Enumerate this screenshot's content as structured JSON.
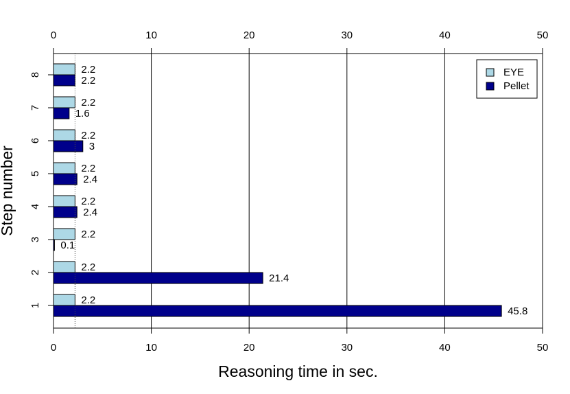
{
  "chart_data": {
    "type": "bar",
    "orientation": "horizontal",
    "xlabel": "Reasoning time in sec.",
    "ylabel": "Step number",
    "xlim": [
      0,
      50
    ],
    "x_ticks": [
      "0",
      "10",
      "20",
      "30",
      "40",
      "50"
    ],
    "categories": [
      "1",
      "2",
      "3",
      "4",
      "5",
      "6",
      "7",
      "8"
    ],
    "series": [
      {
        "name": "EYE",
        "color": "#add8e6",
        "values": [
          2.2,
          2.2,
          2.2,
          2.2,
          2.2,
          2.2,
          2.2,
          2.2
        ],
        "labels": [
          "2.2",
          "2.2",
          "2.2",
          "2.2",
          "2.2",
          "2.2",
          "2.2",
          "2.2"
        ]
      },
      {
        "name": "Pellet",
        "color": "#00008b",
        "values": [
          45.8,
          21.4,
          0.1,
          2.4,
          2.4,
          3,
          1.6,
          2.2
        ],
        "labels": [
          "45.8",
          "21.4",
          "0.1",
          "2.4",
          "2.4",
          "3",
          "1.6",
          "2.2"
        ]
      }
    ],
    "gridlines_x": [
      10,
      20,
      30,
      40
    ],
    "reference_line": 2.2,
    "legend_position": "top-right",
    "top_axis": true
  }
}
